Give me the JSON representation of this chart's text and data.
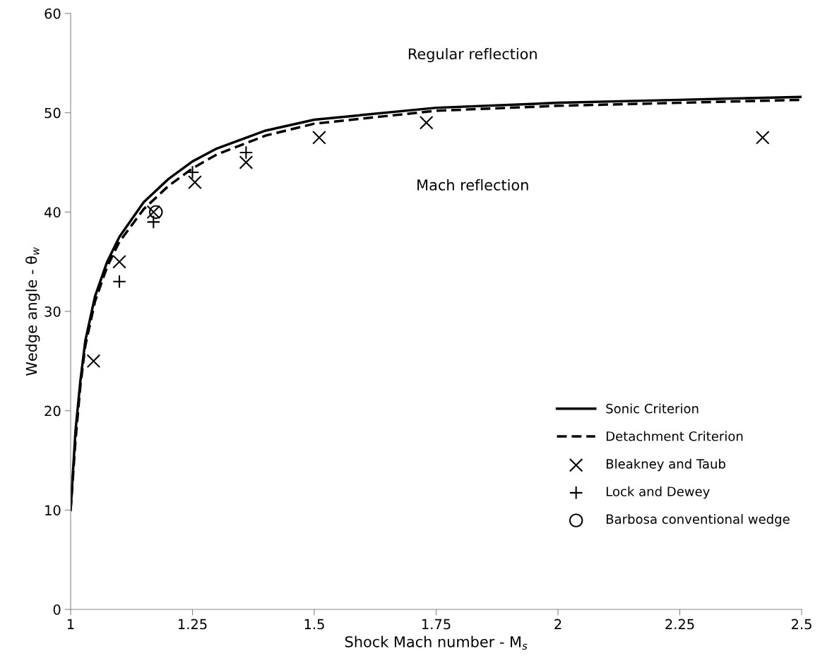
{
  "chart_data": {
    "type": "line",
    "xlabel": "Shock Mach number - M$_{s}$",
    "ylabel": "Wedge angle - θ$_{w}$",
    "annotations": [
      "Regular reflection",
      "Mach reflection"
    ],
    "xlim": [
      1,
      2.5
    ],
    "xticks": [
      1,
      1.25,
      1.5,
      1.75,
      2,
      2.25,
      2.5
    ],
    "ylim": [
      0,
      60
    ],
    "yticks": [
      0,
      10,
      20,
      30,
      40,
      50,
      60
    ],
    "grid": false,
    "legend": "bottom right",
    "series": [
      {
        "name": "Sonic Criterion",
        "line_style": "solid",
        "marker": "none",
        "color": "#000000",
        "x": [
          1.0,
          1.01,
          1.02,
          1.03,
          1.05,
          1.075,
          1.1,
          1.15,
          1.2,
          1.25,
          1.3,
          1.4,
          1.5,
          1.75,
          2.0,
          2.25,
          2.5
        ],
        "values": [
          10,
          18,
          23,
          27,
          31.5,
          35,
          37.5,
          41,
          43.3,
          45.1,
          46.4,
          48.2,
          49.3,
          50.5,
          51,
          51.3,
          51.6
        ]
      },
      {
        "name": "Detachment Criterion",
        "line_style": "dashed",
        "marker": "none",
        "color": "#000000",
        "x": [
          1.0,
          1.01,
          1.02,
          1.03,
          1.05,
          1.075,
          1.1,
          1.15,
          1.2,
          1.25,
          1.3,
          1.4,
          1.5,
          1.75,
          2.0,
          2.25,
          2.5
        ],
        "values": [
          10,
          17,
          22.5,
          26.5,
          31,
          34.5,
          37,
          40.3,
          42.6,
          44.4,
          45.8,
          47.7,
          48.9,
          50.2,
          50.7,
          51.0,
          51.3
        ]
      },
      {
        "name": "Bleakney and Taub",
        "type": "scatter",
        "marker": "cross",
        "color": "#000000",
        "x": [
          1.047,
          1.1,
          1.17,
          1.255,
          1.36,
          1.51,
          1.73,
          2.42
        ],
        "values": [
          25,
          35,
          40,
          43,
          45,
          47.5,
          49,
          47.5
        ]
      },
      {
        "name": "Lock and Dewey",
        "type": "scatter",
        "marker": "plus",
        "color": "#000000",
        "x": [
          1.1,
          1.17,
          1.25,
          1.36
        ],
        "values": [
          33,
          39,
          44,
          46
        ]
      },
      {
        "name": "Barbosa conventional wedge",
        "type": "scatter",
        "marker": "circle",
        "color": "#000000",
        "x": [
          1.175
        ],
        "values": [
          40
        ]
      }
    ]
  }
}
